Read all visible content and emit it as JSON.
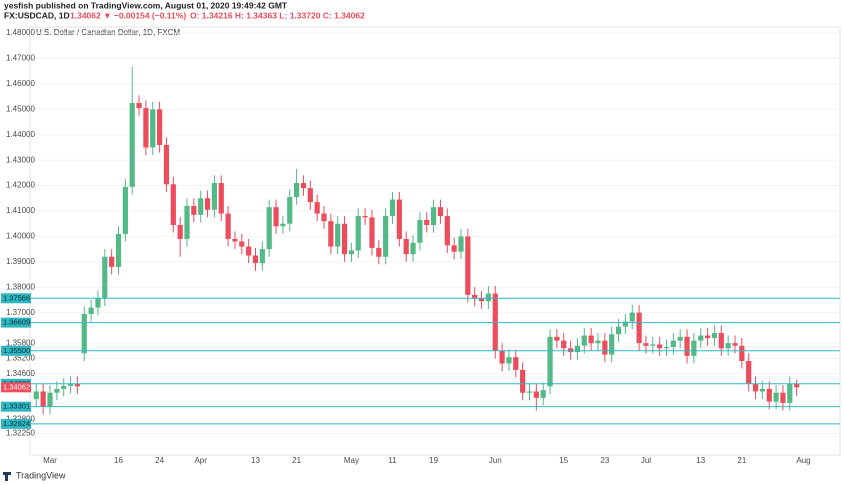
{
  "header": {
    "publisher": "yesfish published on TradingView.com, August 01, 2020 19:49:42 GMT",
    "symbol": "FX:USDCAD, 1D",
    "quote": "1.34062 ▼ −0.00154 (−0.11%)",
    "ohlc": "O: 1.34216 H: 1.34363 L: 1.33720 C: 1.34062"
  },
  "footer": {
    "brand": "TradingView"
  },
  "chart_data": {
    "type": "candlestick",
    "title": "U.S. Dollar / Canadian Dollar, 1D, FXCM",
    "categories": [
      null,
      null,
      "Mar",
      null,
      null,
      null,
      null,
      null,
      null,
      null,
      null,
      null,
      "16",
      null,
      null,
      null,
      null,
      null,
      "24",
      null,
      null,
      null,
      null,
      null,
      "Apr",
      null,
      null,
      null,
      null,
      null,
      null,
      null,
      "13",
      null,
      null,
      null,
      null,
      null,
      "21",
      null,
      null,
      null,
      null,
      null,
      null,
      null,
      "May",
      null,
      null,
      null,
      null,
      null,
      "11",
      null,
      null,
      null,
      null,
      null,
      "19",
      null,
      null,
      null,
      null,
      null,
      null,
      null,
      null,
      "Jun",
      null,
      null,
      null,
      null,
      null,
      null,
      null,
      null,
      null,
      "15",
      null,
      null,
      null,
      null,
      null,
      "23",
      null,
      null,
      null,
      null,
      null,
      "Jul",
      null,
      null,
      null,
      null,
      null,
      null,
      null,
      "13",
      null,
      null,
      null,
      null,
      null,
      "21",
      null,
      null,
      null,
      null,
      null,
      null,
      null,
      null,
      "Aug"
    ],
    "open": [
      1.336,
      1.339,
      1.333,
      1.3385,
      1.34,
      1.3412,
      1.342,
      1.354,
      1.3695,
      1.372,
      1.3756,
      1.392,
      1.388,
      1.401,
      1.4195,
      1.4525,
      1.4505,
      1.435,
      1.45,
      1.436,
      1.4205,
      1.4045,
      1.399,
      1.412,
      1.4085,
      1.415,
      1.4105,
      1.421,
      1.409,
      1.399,
      1.398,
      1.396,
      1.3925,
      1.3895,
      1.395,
      1.4115,
      1.404,
      1.405,
      1.4155,
      1.421,
      1.419,
      1.4135,
      1.409,
      1.406,
      1.396,
      1.405,
      1.393,
      1.3945,
      1.408,
      1.4075,
      1.3955,
      1.392,
      1.408,
      1.4145,
      1.399,
      1.393,
      1.3975,
      1.4065,
      1.4045,
      1.4115,
      1.408,
      1.3965,
      1.394,
      1.4,
      1.377,
      1.3755,
      1.3745,
      1.3775,
      1.355,
      1.35,
      1.3525,
      1.3475,
      1.3385,
      1.339,
      1.3365,
      1.341,
      1.3605,
      1.359,
      1.356,
      1.3545,
      1.357,
      1.361,
      1.358,
      1.359,
      1.3535,
      1.3615,
      1.3645,
      1.3665,
      1.37,
      1.358,
      1.357,
      1.3575,
      1.356,
      1.3565,
      1.359,
      1.3605,
      1.353,
      1.359,
      1.361,
      1.36,
      1.362,
      1.356,
      1.358,
      1.357,
      1.351,
      1.342,
      1.339,
      1.34,
      1.335,
      1.3385,
      1.3345,
      1.34216,
      null
    ],
    "high": [
      1.342,
      1.342,
      1.3415,
      1.343,
      1.3442,
      1.345,
      1.345,
      1.3725,
      1.375,
      1.3786,
      1.395,
      1.395,
      1.404,
      1.4225,
      1.4667,
      1.4555,
      1.4535,
      1.453,
      1.453,
      1.439,
      1.4235,
      1.4075,
      1.415,
      1.415,
      1.418,
      1.418,
      1.424,
      1.424,
      1.412,
      1.402,
      1.401,
      1.399,
      1.3955,
      1.398,
      1.4145,
      1.4145,
      1.408,
      1.4185,
      1.4265,
      1.424,
      1.422,
      1.4165,
      1.412,
      1.409,
      1.408,
      1.408,
      1.3975,
      1.411,
      1.411,
      1.4105,
      1.3985,
      1.411,
      1.4175,
      1.4175,
      1.402,
      1.4005,
      1.4095,
      1.4095,
      1.4145,
      1.4145,
      1.411,
      1.3995,
      1.403,
      1.403,
      1.38,
      1.3785,
      1.3805,
      1.3805,
      1.358,
      1.3555,
      1.3555,
      1.3505,
      1.342,
      1.342,
      1.3425,
      1.3635,
      1.3635,
      1.362,
      1.359,
      1.36,
      1.364,
      1.364,
      1.362,
      1.362,
      1.3645,
      1.3675,
      1.3695,
      1.373,
      1.373,
      1.361,
      1.3605,
      1.3605,
      1.3595,
      1.362,
      1.3635,
      1.3635,
      1.362,
      1.364,
      1.364,
      1.365,
      1.365,
      1.361,
      1.361,
      1.36,
      1.354,
      1.345,
      1.343,
      1.343,
      1.3415,
      1.3415,
      1.345,
      1.34363,
      null
    ],
    "low": [
      1.333,
      1.33,
      1.33,
      1.3355,
      1.337,
      1.3382,
      1.338,
      1.351,
      1.3665,
      1.369,
      1.3726,
      1.385,
      1.385,
      1.398,
      1.4165,
      1.4475,
      1.432,
      1.432,
      1.433,
      1.4175,
      1.4015,
      1.392,
      1.396,
      1.4055,
      1.4055,
      1.4075,
      1.4075,
      1.406,
      1.396,
      1.395,
      1.393,
      1.3895,
      1.3865,
      1.3865,
      1.392,
      1.401,
      1.401,
      1.402,
      1.4125,
      1.416,
      1.4105,
      1.406,
      1.403,
      1.393,
      1.393,
      1.39,
      1.39,
      1.3915,
      1.4045,
      1.3925,
      1.389,
      1.389,
      1.405,
      1.396,
      1.39,
      1.39,
      1.3945,
      1.4015,
      1.4015,
      1.405,
      1.3935,
      1.391,
      1.391,
      1.374,
      1.3725,
      1.3715,
      1.3715,
      1.352,
      1.347,
      1.347,
      1.3445,
      1.3355,
      1.3355,
      1.3315,
      1.3335,
      1.338,
      1.356,
      1.353,
      1.3515,
      1.3515,
      1.354,
      1.355,
      1.355,
      1.3505,
      1.3505,
      1.3585,
      1.3615,
      1.3635,
      1.355,
      1.354,
      1.354,
      1.353,
      1.353,
      1.3535,
      1.356,
      1.35,
      1.35,
      1.356,
      1.357,
      1.357,
      1.353,
      1.353,
      1.354,
      1.348,
      1.339,
      1.336,
      1.336,
      1.332,
      1.332,
      1.3315,
      1.3315,
      1.3372,
      null
    ],
    "close": [
      1.339,
      1.333,
      1.3385,
      1.34,
      1.3412,
      1.342,
      1.341,
      1.3695,
      1.372,
      1.3756,
      1.392,
      1.388,
      1.401,
      1.4195,
      1.4525,
      1.4505,
      1.435,
      1.45,
      1.436,
      1.4205,
      1.4045,
      1.399,
      1.412,
      1.4085,
      1.415,
      1.4105,
      1.421,
      1.409,
      1.399,
      1.398,
      1.396,
      1.3925,
      1.3895,
      1.395,
      1.4115,
      1.404,
      1.405,
      1.4155,
      1.421,
      1.419,
      1.4135,
      1.409,
      1.406,
      1.396,
      1.405,
      1.393,
      1.3945,
      1.408,
      1.4075,
      1.3955,
      1.392,
      1.408,
      1.4145,
      1.399,
      1.393,
      1.3975,
      1.4065,
      1.4045,
      1.4115,
      1.408,
      1.3965,
      1.394,
      1.4,
      1.377,
      1.3755,
      1.3745,
      1.3775,
      1.355,
      1.35,
      1.3525,
      1.3475,
      1.3385,
      1.339,
      1.3365,
      1.3395,
      1.3605,
      1.359,
      1.356,
      1.3545,
      1.357,
      1.361,
      1.358,
      1.359,
      1.3535,
      1.3615,
      1.3645,
      1.3665,
      1.37,
      1.358,
      1.357,
      1.3575,
      1.356,
      1.3565,
      1.359,
      1.3605,
      1.353,
      1.359,
      1.361,
      1.36,
      1.362,
      1.356,
      1.358,
      1.357,
      1.351,
      1.342,
      1.339,
      1.34,
      1.335,
      1.3385,
      1.3345,
      1.342,
      1.34062,
      null
    ],
    "up_color": "#53b987",
    "down_color": "#eb4d5c",
    "ylim": [
      1.314,
      1.4824
    ],
    "yticks": [
      {
        "value": 1.48,
        "label": "1.48000"
      },
      {
        "value": 1.47,
        "label": "1.47000"
      },
      {
        "value": 1.46,
        "label": "1.46000"
      },
      {
        "value": 1.45,
        "label": "1.45000"
      },
      {
        "value": 1.44,
        "label": "1.44000"
      },
      {
        "value": 1.43,
        "label": "1.43000"
      },
      {
        "value": 1.42,
        "label": "1.42000"
      },
      {
        "value": 1.41,
        "label": "1.41000"
      },
      {
        "value": 1.4,
        "label": "1.40000"
      },
      {
        "value": 1.39,
        "label": "1.39000"
      },
      {
        "value": 1.38,
        "label": "1.38000"
      },
      {
        "value": 1.37,
        "label": "1.37000"
      },
      {
        "value": 1.358,
        "label": "1.35800"
      },
      {
        "value": 1.352,
        "label": "1.35200"
      },
      {
        "value": 1.346,
        "label": "1.34600"
      },
      {
        "value": 1.328,
        "label": "1.32800"
      },
      {
        "value": 1.3225,
        "label": "1.32250"
      }
    ],
    "grid": true,
    "levels": [
      {
        "value": 1.37566,
        "label": "1.37566"
      },
      {
        "value": 1.36609,
        "label": "1.36609"
      },
      {
        "value": 1.355,
        "label": "1.35500"
      },
      {
        "value": 1.34202,
        "label": "1.34202"
      },
      {
        "value": 1.33301,
        "label": "1.33301"
      },
      {
        "value": 1.32624,
        "label": "1.32624"
      }
    ],
    "level_color": "#2fb8c3",
    "last_price": {
      "value": 1.34062,
      "label": "1.34062"
    },
    "last_price_color": "#eb4d5c"
  }
}
